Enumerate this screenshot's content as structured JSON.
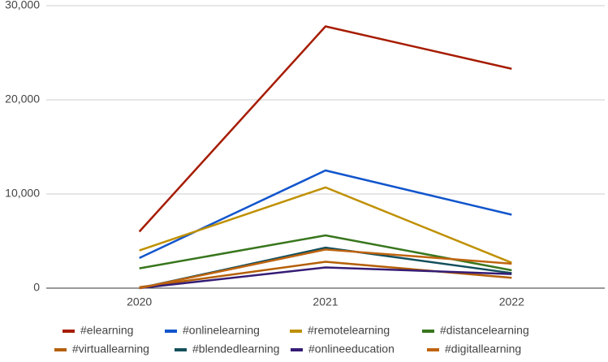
{
  "chart_data": {
    "type": "line",
    "categories": [
      "2020",
      "2021",
      "2022"
    ],
    "series": [
      {
        "name": "#elearning",
        "color": "#a61c00",
        "values": [
          6000,
          27800,
          23300
        ]
      },
      {
        "name": "#onlinelearning",
        "color": "#1155cc",
        "values": [
          3200,
          12500,
          7800
        ]
      },
      {
        "name": "#remotelearning",
        "color": "#bf9000",
        "values": [
          4000,
          10700,
          2700
        ]
      },
      {
        "name": "#distancelearning",
        "color": "#38761d",
        "values": [
          2100,
          5600,
          1900
        ]
      },
      {
        "name": "#virtuallearning",
        "color": "#b45f06",
        "values": [
          100,
          2800,
          1100
        ]
      },
      {
        "name": "#blendedlearning",
        "color": "#134f5c",
        "values": [
          0,
          4300,
          1600
        ]
      },
      {
        "name": "#onlineeducation",
        "color": "#351c75",
        "values": [
          0,
          2200,
          1500
        ]
      },
      {
        "name": "#digitallearning",
        "color": "#c0640f",
        "values": [
          0,
          4100,
          2600
        ]
      }
    ],
    "ylim": [
      0,
      30000
    ],
    "yticks": [
      0,
      {
        "value": 10000,
        "label": "10,000"
      },
      {
        "value": 20000,
        "label": "20,000"
      },
      {
        "value": 30000,
        "label": "30,000"
      }
    ],
    "grid": true,
    "legend": "bottom"
  }
}
